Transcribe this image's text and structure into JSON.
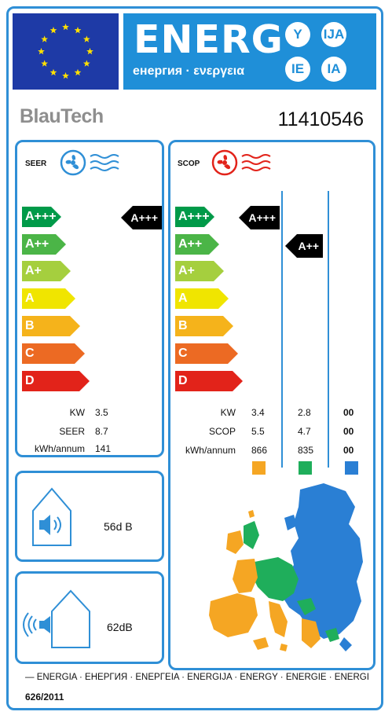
{
  "header": {
    "energy_title": "ENERG",
    "energy_subtitle": "енергия · ενεργεια",
    "suffixes": [
      "Y",
      "IJA",
      "IE",
      "IA"
    ]
  },
  "brand": "BlauTech",
  "model_number": "11410546",
  "seer": {
    "label": "SEER",
    "scale": [
      "A+++",
      "A++",
      "A+",
      "A",
      "B",
      "C",
      "D"
    ],
    "class": "A+++",
    "rows": [
      {
        "label": "KW",
        "value": "3.5"
      },
      {
        "label": "SEER",
        "value": "8.7"
      },
      {
        "label": "kWh/annum",
        "value": "141"
      }
    ]
  },
  "scop": {
    "label": "SCOP",
    "scale": [
      "A+++",
      "A++",
      "A+",
      "A",
      "B",
      "C",
      "D"
    ],
    "classes": [
      "A+++",
      "A++"
    ],
    "rows": [
      {
        "label": "KW",
        "values": [
          "3.4",
          "2.8",
          "00"
        ]
      },
      {
        "label": "SCOP",
        "values": [
          "5.5",
          "4.7",
          "00"
        ]
      },
      {
        "label": "kWh/annum",
        "values": [
          "866",
          "835",
          "00"
        ]
      }
    ],
    "zone_colors": [
      "#f5a623",
      "#1fae5b",
      "#2a7fd4"
    ]
  },
  "scale_colors": [
    "#009a49",
    "#4bb547",
    "#a5cf3e",
    "#f0e500",
    "#f5b31b",
    "#ec6a23",
    "#e2231a"
  ],
  "noise_indoor": "56d B",
  "noise_outdoor": "62dB",
  "footer": {
    "languages": "ENERGIA · ЕНЕРГИЯ · ΕΝΕΡΓΕΙΑ · ENERGIJA · ENERGY · ENERGIE · ENERGI",
    "regulation": "626/2011"
  }
}
